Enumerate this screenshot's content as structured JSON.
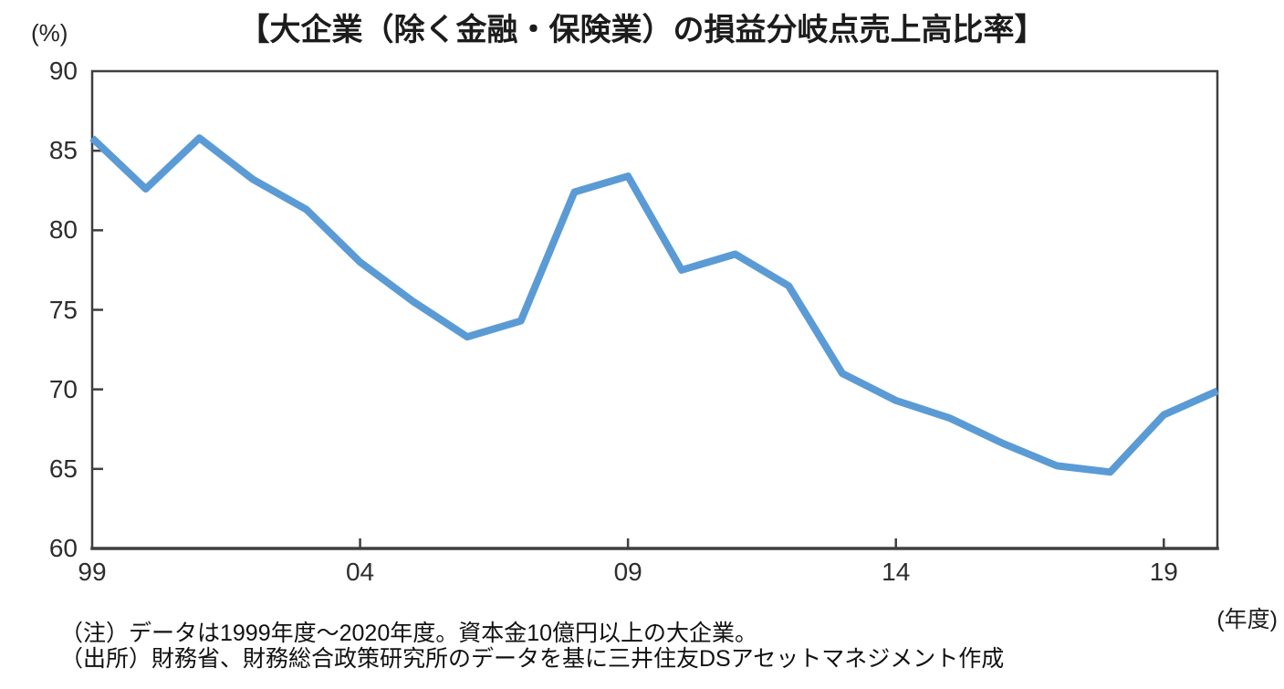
{
  "notes": {
    "line1": "（注）データは1999年度～2020年度。資本金10億円以上の大企業。",
    "line2": "（出所）財務省、財務総合政策研究所のデータを基に三井住友DSアセットマネジメント作成"
  },
  "chart_data": {
    "type": "line",
    "title": "【大企業（除く金融・保険業）の損益分岐点売上高比率】",
    "unit_label": "(%)",
    "x_axis_unit_label": "(年度)",
    "x": [
      1999,
      2000,
      2001,
      2002,
      2003,
      2004,
      2005,
      2006,
      2007,
      2008,
      2009,
      2010,
      2011,
      2012,
      2013,
      2014,
      2015,
      2016,
      2017,
      2018,
      2019,
      2020
    ],
    "values": [
      85.8,
      82.6,
      85.8,
      83.2,
      81.3,
      78.0,
      75.5,
      73.3,
      74.3,
      82.4,
      83.4,
      77.5,
      78.5,
      76.5,
      71.0,
      69.3,
      68.2,
      66.6,
      65.2,
      64.8,
      68.4,
      69.9
    ],
    "series_name": "損益分岐点売上高比率",
    "xlim": [
      1999,
      2020
    ],
    "ylim": [
      60,
      90
    ],
    "y_ticks": [
      60,
      65,
      70,
      75,
      80,
      85,
      90
    ],
    "y_tick_labels": [
      "60",
      "65",
      "70",
      "75",
      "80",
      "85",
      "90"
    ],
    "x_tick_years": [
      1999,
      2004,
      2009,
      2014,
      2019
    ],
    "x_tick_labels": [
      "99",
      "04",
      "09",
      "14",
      "19"
    ],
    "grid": false,
    "legend": "none",
    "line_color": "#5B9BD5",
    "axis_color": "#3f3f3f",
    "line_width": 8
  }
}
